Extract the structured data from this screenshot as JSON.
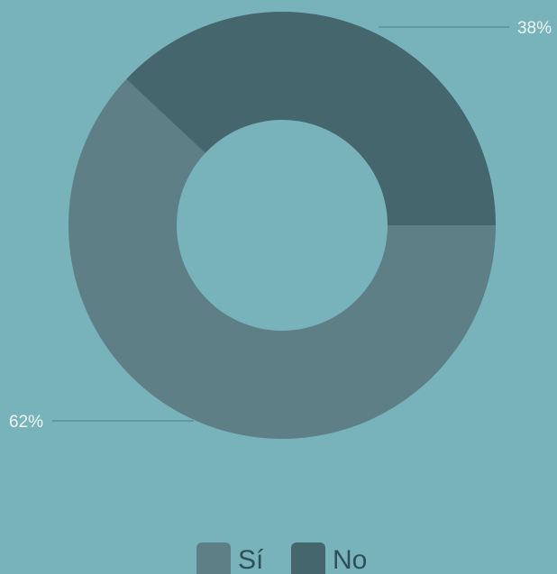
{
  "chart_data": {
    "type": "donut",
    "categories": [
      "Sí",
      "No"
    ],
    "values": [
      62,
      38
    ],
    "value_labels": [
      "62%",
      "38%"
    ],
    "colors": [
      "#5e7f86",
      "#46666e"
    ],
    "legend": "bottom"
  }
}
